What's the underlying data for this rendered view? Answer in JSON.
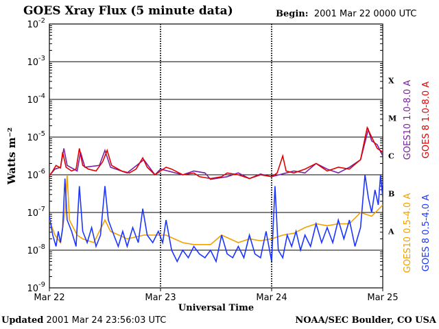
{
  "header": {
    "title": "GOES Xray Flux (5 minute data)",
    "begin_label": "Begin:",
    "begin_value": "2001 Mar 22 0000 UTC"
  },
  "footer": {
    "updated_label": "Updated",
    "updated_value": "2001 Mar 24 23:56:03 UTC",
    "credit": "NOAA/SEC Boulder, CO USA"
  },
  "chart_data": {
    "type": "line",
    "title": "GOES Xray Flux (5 minute data)",
    "xlabel": "Universal Time",
    "ylabel": "Watts m⁻²",
    "yscale": "log",
    "ylim_exp": [
      -9,
      -2
    ],
    "y_ticks": [
      {
        "exp": -2,
        "label": "-2"
      },
      {
        "exp": -3,
        "label": "-3"
      },
      {
        "exp": -4,
        "label": "-4"
      },
      {
        "exp": -5,
        "label": "-5"
      },
      {
        "exp": -6,
        "label": "-6"
      },
      {
        "exp": -7,
        "label": "-7"
      },
      {
        "exp": -8,
        "label": "-8"
      },
      {
        "exp": -9,
        "label": "-9"
      }
    ],
    "y_tick_base": "10",
    "x_range_days": [
      0,
      3
    ],
    "x_ticks": [
      {
        "day": 0,
        "label": "Mar 22"
      },
      {
        "day": 1,
        "label": "Mar 23"
      },
      {
        "day": 2,
        "label": "Mar 24"
      },
      {
        "day": 3,
        "label": "Mar 25"
      }
    ],
    "flare_classes": [
      {
        "label": "X",
        "exp": -3.5
      },
      {
        "label": "M",
        "exp": -4.5
      },
      {
        "label": "C",
        "exp": -5.5
      },
      {
        "label": "B",
        "exp": -6.5
      },
      {
        "label": "A",
        "exp": -7.5
      }
    ],
    "legend_position": "right",
    "series": [
      {
        "name": "GOES10 1.0-8.0 A",
        "color": "#7b1fa2",
        "points": [
          [
            0,
            -6.02
          ],
          [
            0.05,
            -5.85
          ],
          [
            0.1,
            -5.8
          ],
          [
            0.13,
            -5.3
          ],
          [
            0.16,
            -5.75
          ],
          [
            0.25,
            -5.9
          ],
          [
            0.28,
            -5.4
          ],
          [
            0.32,
            -5.8
          ],
          [
            0.45,
            -5.75
          ],
          [
            0.5,
            -5.35
          ],
          [
            0.55,
            -5.8
          ],
          [
            0.7,
            -5.95
          ],
          [
            0.85,
            -5.6
          ],
          [
            0.95,
            -6.0
          ],
          [
            1.0,
            -5.85
          ],
          [
            1.2,
            -6.0
          ],
          [
            1.3,
            -5.9
          ],
          [
            1.4,
            -5.95
          ],
          [
            1.45,
            -6.12
          ],
          [
            1.6,
            -6.05
          ],
          [
            1.7,
            -5.95
          ],
          [
            1.8,
            -6.1
          ],
          [
            1.9,
            -5.98
          ],
          [
            2.0,
            -6.05
          ],
          [
            2.2,
            -5.9
          ],
          [
            2.3,
            -5.95
          ],
          [
            2.4,
            -5.7
          ],
          [
            2.5,
            -5.85
          ],
          [
            2.6,
            -5.95
          ],
          [
            2.7,
            -5.8
          ],
          [
            2.8,
            -5.6
          ],
          [
            2.87,
            -4.8
          ],
          [
            2.9,
            -5.1
          ],
          [
            2.95,
            -5.2
          ],
          [
            3.0,
            -5.5
          ]
        ]
      },
      {
        "name": "GOES 8 1.0-8.0 A",
        "color": "#e00000",
        "points": [
          [
            0,
            -6.03
          ],
          [
            0.03,
            -5.9
          ],
          [
            0.06,
            -5.75
          ],
          [
            0.1,
            -5.82
          ],
          [
            0.12,
            -5.4
          ],
          [
            0.15,
            -5.8
          ],
          [
            0.2,
            -5.9
          ],
          [
            0.24,
            -5.85
          ],
          [
            0.27,
            -5.3
          ],
          [
            0.3,
            -5.75
          ],
          [
            0.35,
            -5.85
          ],
          [
            0.42,
            -5.9
          ],
          [
            0.48,
            -5.65
          ],
          [
            0.52,
            -5.35
          ],
          [
            0.56,
            -5.75
          ],
          [
            0.65,
            -5.9
          ],
          [
            0.72,
            -5.95
          ],
          [
            0.78,
            -5.85
          ],
          [
            0.84,
            -5.55
          ],
          [
            0.88,
            -5.8
          ],
          [
            0.95,
            -6.0
          ],
          [
            1.0,
            -5.9
          ],
          [
            1.05,
            -5.8
          ],
          [
            1.1,
            -5.85
          ],
          [
            1.2,
            -6.0
          ],
          [
            1.3,
            -5.95
          ],
          [
            1.35,
            -6.05
          ],
          [
            1.45,
            -6.1
          ],
          [
            1.55,
            -6.05
          ],
          [
            1.6,
            -5.95
          ],
          [
            1.7,
            -6.0
          ],
          [
            1.8,
            -6.1
          ],
          [
            1.9,
            -6.0
          ],
          [
            2.0,
            -6.05
          ],
          [
            2.05,
            -5.95
          ],
          [
            2.1,
            -5.5
          ],
          [
            2.13,
            -5.9
          ],
          [
            2.2,
            -5.95
          ],
          [
            2.3,
            -5.85
          ],
          [
            2.4,
            -5.7
          ],
          [
            2.5,
            -5.9
          ],
          [
            2.6,
            -5.8
          ],
          [
            2.7,
            -5.85
          ],
          [
            2.8,
            -5.6
          ],
          [
            2.86,
            -4.75
          ],
          [
            2.9,
            -5.0
          ],
          [
            2.95,
            -5.3
          ],
          [
            3.0,
            -5.4
          ]
        ]
      },
      {
        "name": "GOES10 0.5-4.0 A",
        "color": "#f0a000",
        "points": [
          [
            0,
            -7.2
          ],
          [
            0.05,
            -7.6
          ],
          [
            0.1,
            -7.8
          ],
          [
            0.14,
            -7.0
          ],
          [
            0.16,
            -6.0
          ],
          [
            0.18,
            -7.2
          ],
          [
            0.25,
            -7.6
          ],
          [
            0.3,
            -7.7
          ],
          [
            0.4,
            -7.8
          ],
          [
            0.5,
            -7.2
          ],
          [
            0.55,
            -7.5
          ],
          [
            0.7,
            -7.7
          ],
          [
            0.85,
            -7.6
          ],
          [
            0.95,
            -7.6
          ],
          [
            1.05,
            -7.6
          ],
          [
            1.2,
            -7.8
          ],
          [
            1.3,
            -7.85
          ],
          [
            1.45,
            -7.85
          ],
          [
            1.55,
            -7.6
          ],
          [
            1.7,
            -7.8
          ],
          [
            1.8,
            -7.7
          ],
          [
            1.9,
            -7.75
          ],
          [
            2.0,
            -7.7
          ],
          [
            2.1,
            -7.6
          ],
          [
            2.2,
            -7.55
          ],
          [
            2.3,
            -7.4
          ],
          [
            2.4,
            -7.3
          ],
          [
            2.5,
            -7.35
          ],
          [
            2.6,
            -7.3
          ],
          [
            2.7,
            -7.3
          ],
          [
            2.8,
            -7.0
          ],
          [
            2.9,
            -7.1
          ],
          [
            3.0,
            -6.8
          ]
        ]
      },
      {
        "name": "GOES 8 0.5-4.0 A",
        "color": "#1a33ff",
        "points": [
          [
            0,
            -7.1
          ],
          [
            0.03,
            -7.6
          ],
          [
            0.06,
            -7.9
          ],
          [
            0.08,
            -7.5
          ],
          [
            0.1,
            -7.8
          ],
          [
            0.12,
            -7.4
          ],
          [
            0.14,
            -6.1
          ],
          [
            0.16,
            -7.2
          ],
          [
            0.2,
            -7.5
          ],
          [
            0.24,
            -7.9
          ],
          [
            0.27,
            -6.3
          ],
          [
            0.3,
            -7.5
          ],
          [
            0.34,
            -7.8
          ],
          [
            0.38,
            -7.4
          ],
          [
            0.42,
            -7.9
          ],
          [
            0.46,
            -7.6
          ],
          [
            0.5,
            -6.3
          ],
          [
            0.53,
            -7.2
          ],
          [
            0.58,
            -7.6
          ],
          [
            0.62,
            -7.9
          ],
          [
            0.66,
            -7.5
          ],
          [
            0.7,
            -7.9
          ],
          [
            0.75,
            -7.4
          ],
          [
            0.8,
            -7.8
          ],
          [
            0.84,
            -6.9
          ],
          [
            0.88,
            -7.6
          ],
          [
            0.93,
            -7.8
          ],
          [
            0.98,
            -7.5
          ],
          [
            1.02,
            -7.8
          ],
          [
            1.05,
            -7.2
          ],
          [
            1.1,
            -8.0
          ],
          [
            1.15,
            -8.3
          ],
          [
            1.2,
            -8.0
          ],
          [
            1.25,
            -8.2
          ],
          [
            1.3,
            -7.9
          ],
          [
            1.35,
            -8.1
          ],
          [
            1.4,
            -8.2
          ],
          [
            1.45,
            -8.0
          ],
          [
            1.5,
            -8.3
          ],
          [
            1.55,
            -7.6
          ],
          [
            1.6,
            -8.1
          ],
          [
            1.65,
            -8.2
          ],
          [
            1.7,
            -7.9
          ],
          [
            1.75,
            -8.2
          ],
          [
            1.8,
            -7.6
          ],
          [
            1.85,
            -8.1
          ],
          [
            1.9,
            -8.2
          ],
          [
            1.95,
            -7.5
          ],
          [
            2.0,
            -8.3
          ],
          [
            2.03,
            -6.3
          ],
          [
            2.06,
            -8.0
          ],
          [
            2.1,
            -8.2
          ],
          [
            2.14,
            -7.6
          ],
          [
            2.18,
            -7.9
          ],
          [
            2.22,
            -7.5
          ],
          [
            2.26,
            -8.0
          ],
          [
            2.3,
            -7.6
          ],
          [
            2.35,
            -7.9
          ],
          [
            2.4,
            -7.3
          ],
          [
            2.45,
            -7.8
          ],
          [
            2.5,
            -7.4
          ],
          [
            2.55,
            -7.8
          ],
          [
            2.6,
            -7.2
          ],
          [
            2.65,
            -7.7
          ],
          [
            2.7,
            -7.2
          ],
          [
            2.75,
            -7.9
          ],
          [
            2.8,
            -7.4
          ],
          [
            2.84,
            -6.0
          ],
          [
            2.87,
            -6.6
          ],
          [
            2.9,
            -7.0
          ],
          [
            2.93,
            -6.4
          ],
          [
            2.96,
            -6.8
          ],
          [
            2.98,
            -6.0
          ],
          [
            3.0,
            -6.6
          ]
        ]
      }
    ]
  }
}
